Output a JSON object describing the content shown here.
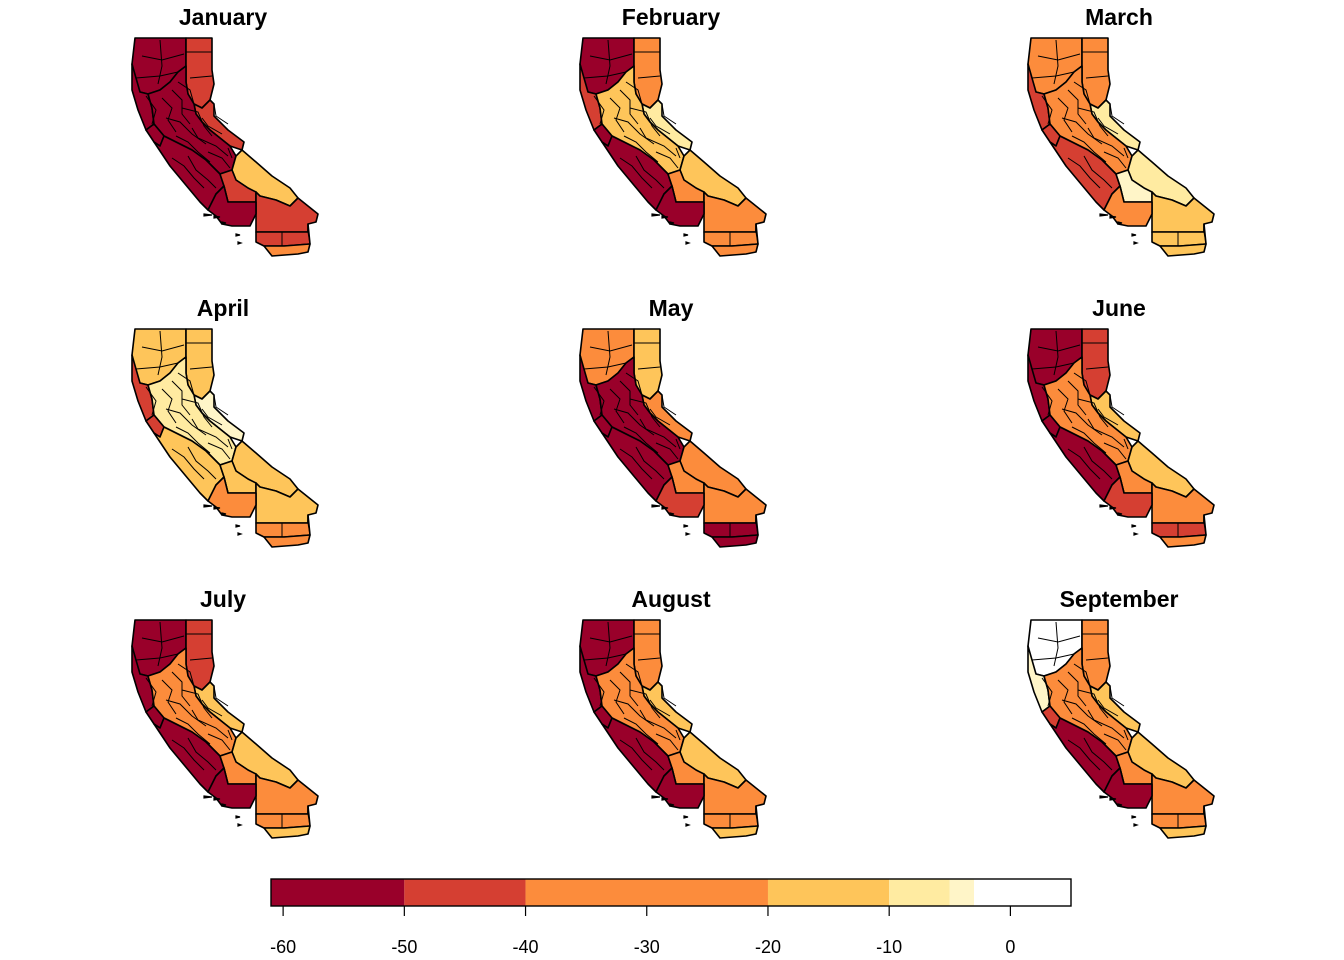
{
  "figure": {
    "panels": [
      {
        "title": "January",
        "palette": {
          "nw": 0,
          "ncoast": 0,
          "neast": 1,
          "sierra": 1,
          "central": 0,
          "bay": 0,
          "coast": 0,
          "east": 3,
          "mid": 1,
          "south": 1,
          "kern": 0,
          "sb": 1,
          "sd": 2
        }
      },
      {
        "title": "February",
        "palette": {
          "nw": 0,
          "ncoast": 1,
          "neast": 2,
          "sierra": 4,
          "central": 3,
          "bay": 0,
          "coast": 0,
          "east": 3,
          "mid": 2,
          "south": 2,
          "kern": 0,
          "sb": 2,
          "sd": 2
        }
      },
      {
        "title": "March",
        "palette": {
          "nw": 2,
          "ncoast": 1,
          "neast": 2,
          "sierra": 4,
          "central": 2,
          "bay": 1,
          "coast": 1,
          "east": 4,
          "mid": 5,
          "south": 3,
          "kern": 2,
          "sb": 3,
          "sd": 3
        }
      },
      {
        "title": "April",
        "palette": {
          "nw": 3,
          "ncoast": 1,
          "neast": 3,
          "sierra": 5,
          "central": 4,
          "bay": 1,
          "coast": 3,
          "east": 3,
          "mid": 3,
          "south": 3,
          "kern": 2,
          "sb": 2,
          "sd": 2
        }
      },
      {
        "title": "May",
        "palette": {
          "nw": 2,
          "ncoast": 0,
          "neast": 3,
          "sierra": 2,
          "central": 0,
          "bay": 0,
          "coast": 0,
          "east": 2,
          "mid": 2,
          "south": 2,
          "kern": 1,
          "sb": 0,
          "sd": 0
        }
      },
      {
        "title": "June",
        "palette": {
          "nw": 0,
          "ncoast": 0,
          "neast": 1,
          "sierra": 3,
          "central": 2,
          "bay": 0,
          "coast": 0,
          "east": 3,
          "mid": 2,
          "south": 2,
          "kern": 1,
          "sb": 1,
          "sd": 2
        }
      },
      {
        "title": "July",
        "palette": {
          "nw": 0,
          "ncoast": 0,
          "neast": 1,
          "sierra": 3,
          "central": 2,
          "bay": 0,
          "coast": 0,
          "east": 3,
          "mid": 2,
          "south": 2,
          "kern": 0,
          "sb": 2,
          "sd": 3
        }
      },
      {
        "title": "August",
        "palette": {
          "nw": 0,
          "ncoast": 0,
          "neast": 2,
          "sierra": 3,
          "central": 2,
          "bay": 0,
          "coast": 0,
          "east": 3,
          "mid": 2,
          "south": 2,
          "kern": 0,
          "sb": 2,
          "sd": 3
        }
      },
      {
        "title": "September",
        "palette": {
          "nw": 7,
          "ncoast": 5,
          "neast": 2,
          "sierra": 3,
          "central": 2,
          "bay": 1,
          "coast": 0,
          "east": 3,
          "mid": 2,
          "south": 2,
          "kern": 0,
          "sb": 2,
          "sd": 3
        }
      }
    ],
    "legend": {
      "breaks": [
        -61,
        -50,
        -40,
        -20,
        -10,
        -5,
        -3,
        5
      ],
      "colors": [
        "#99002a",
        "#d53f32",
        "#fc8c3c",
        "#fec55a",
        "#ffeba1",
        "#fff5c8",
        "#ffffff"
      ],
      "ticks": [
        -60,
        -50,
        -40,
        -30,
        -20,
        -10,
        0
      ],
      "tick_labels": [
        "-60",
        "-50",
        "-40",
        "-30",
        "-20",
        "-10",
        "0"
      ]
    }
  }
}
